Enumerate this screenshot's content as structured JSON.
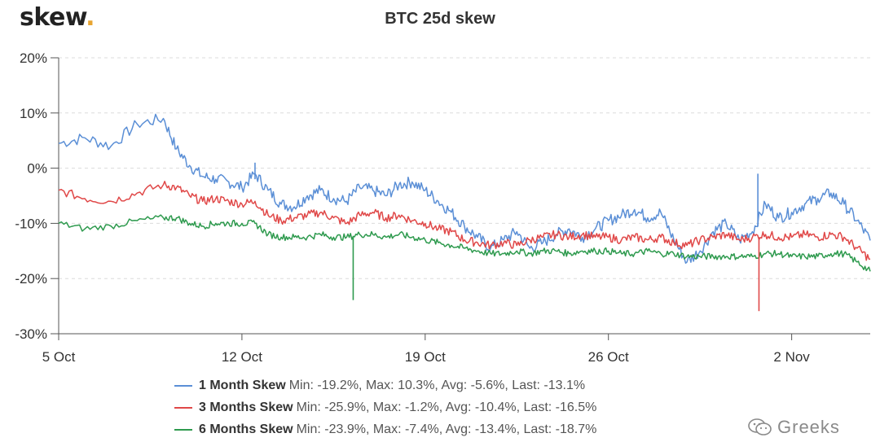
{
  "header": {
    "logo_text": "skew",
    "logo_dot": "."
  },
  "watermark": {
    "text": "Greeks",
    "icon": "wechat-icon"
  },
  "chart_data": {
    "type": "line",
    "title": "BTC 25d skew",
    "xlabel": "",
    "ylabel": "",
    "x_range": [
      "2020-10-05",
      "2020-11-05"
    ],
    "x_ticks": [
      "5 Oct",
      "12 Oct",
      "19 Oct",
      "26 Oct",
      "2 Nov"
    ],
    "y_ticks": [
      "20%",
      "10%",
      "0%",
      "-10%",
      "-20%",
      "-30%"
    ],
    "y_tick_values": [
      20,
      10,
      0,
      -10,
      -20,
      -30
    ],
    "ylim": [
      -30,
      20
    ],
    "grid": true,
    "legend_placement": "bottom",
    "series": [
      {
        "name": "1 Month Skew",
        "stats": "Min: -19.2%, Max: 10.3%, Avg: -5.6%, Last: -13.1%",
        "color": "#5b8fd6",
        "points": [
          [
            "2020-10-05",
            4.5
          ],
          [
            "2020-10-06",
            5.5
          ],
          [
            "2020-10-07",
            4.0
          ],
          [
            "2020-10-08",
            8.0
          ],
          [
            "2020-10-09",
            9.0
          ],
          [
            "2020-10-09T12",
            3.5
          ],
          [
            "2020-10-10",
            0.5
          ],
          [
            "2020-10-10T12",
            -1.5
          ],
          [
            "2020-10-11",
            -2.0
          ],
          [
            "2020-10-11T12",
            -2.5
          ],
          [
            "2020-10-12",
            -3.5
          ],
          [
            "2020-10-12T12",
            -1.0
          ],
          [
            "2020-10-13",
            -4.0
          ],
          [
            "2020-10-13T12",
            -6.5
          ],
          [
            "2020-10-14",
            -7.0
          ],
          [
            "2020-10-14T12",
            -5.0
          ],
          [
            "2020-10-15",
            -4.0
          ],
          [
            "2020-10-15T12",
            -5.5
          ],
          [
            "2020-10-16",
            -6.0
          ],
          [
            "2020-10-16T12",
            -3.5
          ],
          [
            "2020-10-17",
            -4.0
          ],
          [
            "2020-10-17T12",
            -5.0
          ],
          [
            "2020-10-18",
            -3.0
          ],
          [
            "2020-10-18T12",
            -2.5
          ],
          [
            "2020-10-19",
            -4.0
          ],
          [
            "2020-10-19T12",
            -6.0
          ],
          [
            "2020-10-20",
            -8.0
          ],
          [
            "2020-10-20T12",
            -10.5
          ],
          [
            "2020-10-21",
            -12.5
          ],
          [
            "2020-10-21T12",
            -14.5
          ],
          [
            "2020-10-22",
            -13.0
          ],
          [
            "2020-10-22T12",
            -11.5
          ],
          [
            "2020-10-23",
            -14.5
          ],
          [
            "2020-10-23T12",
            -13.5
          ],
          [
            "2020-10-24",
            -12.0
          ],
          [
            "2020-10-24T12",
            -11.0
          ],
          [
            "2020-10-25",
            -12.5
          ],
          [
            "2020-10-25T12",
            -11.0
          ],
          [
            "2020-10-26",
            -9.5
          ],
          [
            "2020-10-26T12",
            -8.5
          ],
          [
            "2020-10-27",
            -7.5
          ],
          [
            "2020-10-27T12",
            -9.0
          ],
          [
            "2020-10-28",
            -8.0
          ],
          [
            "2020-10-28T12",
            -13.0
          ],
          [
            "2020-10-29",
            -17.0
          ],
          [
            "2020-10-29T12",
            -15.0
          ],
          [
            "2020-10-30",
            -11.5
          ],
          [
            "2020-10-30T12",
            -10.0
          ],
          [
            "2020-10-31",
            -13.0
          ],
          [
            "2020-10-31T12",
            -11.5
          ],
          [
            "2020-11-01",
            -6.5
          ],
          [
            "2020-11-01T12",
            -9.0
          ],
          [
            "2020-11-02",
            -8.0
          ],
          [
            "2020-11-02T12",
            -6.5
          ],
          [
            "2020-11-03",
            -5.5
          ],
          [
            "2020-11-03T12",
            -4.5
          ],
          [
            "2020-11-04",
            -6.5
          ],
          [
            "2020-11-04T12",
            -9.5
          ],
          [
            "2020-11-05",
            -13.1
          ]
        ]
      },
      {
        "name": "3 Months Skew",
        "stats": "Min: -25.9%, Max: -1.2%, Avg: -10.4%, Last: -16.5%",
        "color": "#e04848",
        "points": [
          [
            "2020-10-05",
            -4.0
          ],
          [
            "2020-10-06",
            -5.5
          ],
          [
            "2020-10-07",
            -6.0
          ],
          [
            "2020-10-08",
            -4.5
          ],
          [
            "2020-10-09",
            -3.0
          ],
          [
            "2020-10-09T12",
            -3.5
          ],
          [
            "2020-10-10",
            -5.0
          ],
          [
            "2020-10-10T12",
            -6.0
          ],
          [
            "2020-10-11",
            -5.5
          ],
          [
            "2020-10-11T12",
            -6.0
          ],
          [
            "2020-10-12",
            -6.5
          ],
          [
            "2020-10-12T12",
            -6.0
          ],
          [
            "2020-10-13",
            -8.5
          ],
          [
            "2020-10-13T12",
            -9.5
          ],
          [
            "2020-10-14",
            -9.0
          ],
          [
            "2020-10-14T12",
            -8.5
          ],
          [
            "2020-10-15",
            -8.0
          ],
          [
            "2020-10-15T12",
            -9.0
          ],
          [
            "2020-10-16",
            -10.0
          ],
          [
            "2020-10-16T12",
            -8.5
          ],
          [
            "2020-10-17",
            -8.0
          ],
          [
            "2020-10-17T12",
            -9.0
          ],
          [
            "2020-10-18",
            -8.5
          ],
          [
            "2020-10-18T12",
            -9.5
          ],
          [
            "2020-10-19",
            -10.0
          ],
          [
            "2020-10-19T12",
            -11.0
          ],
          [
            "2020-10-20",
            -11.5
          ],
          [
            "2020-10-20T12",
            -13.0
          ],
          [
            "2020-10-21",
            -13.5
          ],
          [
            "2020-10-21T12",
            -14.0
          ],
          [
            "2020-10-22",
            -13.5
          ],
          [
            "2020-10-22T12",
            -14.0
          ],
          [
            "2020-10-23",
            -13.0
          ],
          [
            "2020-10-23T12",
            -12.5
          ],
          [
            "2020-10-24",
            -12.0
          ],
          [
            "2020-10-24T12",
            -12.5
          ],
          [
            "2020-10-25",
            -12.0
          ],
          [
            "2020-10-25T12",
            -12.5
          ],
          [
            "2020-10-26",
            -12.5
          ],
          [
            "2020-10-26T12",
            -13.0
          ],
          [
            "2020-10-27",
            -12.5
          ],
          [
            "2020-10-27T12",
            -13.0
          ],
          [
            "2020-10-28",
            -12.5
          ],
          [
            "2020-10-28T12",
            -13.5
          ],
          [
            "2020-10-29",
            -14.0
          ],
          [
            "2020-10-29T12",
            -13.0
          ],
          [
            "2020-10-30",
            -12.5
          ],
          [
            "2020-10-30T12",
            -12.0
          ],
          [
            "2020-10-31",
            -13.0
          ],
          [
            "2020-10-31T12",
            -12.5
          ],
          [
            "2020-11-01",
            -12.0
          ],
          [
            "2020-11-01T12",
            -12.5
          ],
          [
            "2020-11-02",
            -12.5
          ],
          [
            "2020-11-02T12",
            -12.0
          ],
          [
            "2020-11-03",
            -12.5
          ],
          [
            "2020-11-03T12",
            -12.0
          ],
          [
            "2020-11-04",
            -12.5
          ],
          [
            "2020-11-04T12",
            -14.5
          ],
          [
            "2020-11-05",
            -16.5
          ]
        ]
      },
      {
        "name": "6 Months Skew",
        "stats": "Min: -23.9%, Max: -7.4%, Avg: -13.4%, Last: -18.7%",
        "color": "#2e9a4e",
        "points": [
          [
            "2020-10-05",
            -10.0
          ],
          [
            "2020-10-06",
            -11.0
          ],
          [
            "2020-10-07",
            -10.5
          ],
          [
            "2020-10-08",
            -9.5
          ],
          [
            "2020-10-09",
            -9.0
          ],
          [
            "2020-10-09T12",
            -9.0
          ],
          [
            "2020-10-10",
            -10.0
          ],
          [
            "2020-10-10T12",
            -10.5
          ],
          [
            "2020-10-11",
            -10.0
          ],
          [
            "2020-10-11T12",
            -10.0
          ],
          [
            "2020-10-12",
            -10.0
          ],
          [
            "2020-10-12T12",
            -10.0
          ],
          [
            "2020-10-13",
            -12.0
          ],
          [
            "2020-10-13T12",
            -12.5
          ],
          [
            "2020-10-14",
            -12.5
          ],
          [
            "2020-10-14T12",
            -12.5
          ],
          [
            "2020-10-15",
            -12.0
          ],
          [
            "2020-10-15T12",
            -12.5
          ],
          [
            "2020-10-16",
            -12.5
          ],
          [
            "2020-10-16T12",
            -12.0
          ],
          [
            "2020-10-17",
            -12.0
          ],
          [
            "2020-10-17T12",
            -12.5
          ],
          [
            "2020-10-18",
            -12.0
          ],
          [
            "2020-10-18T12",
            -12.5
          ],
          [
            "2020-10-19",
            -13.0
          ],
          [
            "2020-10-19T12",
            -13.5
          ],
          [
            "2020-10-20",
            -14.0
          ],
          [
            "2020-10-20T12",
            -14.5
          ],
          [
            "2020-10-21",
            -15.0
          ],
          [
            "2020-10-21T12",
            -15.5
          ],
          [
            "2020-10-22",
            -15.5
          ],
          [
            "2020-10-22T12",
            -15.0
          ],
          [
            "2020-10-23",
            -15.5
          ],
          [
            "2020-10-23T12",
            -15.0
          ],
          [
            "2020-10-24",
            -15.0
          ],
          [
            "2020-10-24T12",
            -15.5
          ],
          [
            "2020-10-25",
            -15.0
          ],
          [
            "2020-10-25T12",
            -15.0
          ],
          [
            "2020-10-26",
            -15.0
          ],
          [
            "2020-10-26T12",
            -15.5
          ],
          [
            "2020-10-27",
            -15.5
          ],
          [
            "2020-10-27T12",
            -15.0
          ],
          [
            "2020-10-28",
            -15.5
          ],
          [
            "2020-10-28T12",
            -15.5
          ],
          [
            "2020-10-29",
            -16.0
          ],
          [
            "2020-10-29T12",
            -16.0
          ],
          [
            "2020-10-30",
            -16.0
          ],
          [
            "2020-10-30T12",
            -16.0
          ],
          [
            "2020-10-31",
            -16.0
          ],
          [
            "2020-10-31T12",
            -16.0
          ],
          [
            "2020-11-01",
            -15.5
          ],
          [
            "2020-11-01T12",
            -15.5
          ],
          [
            "2020-11-02",
            -16.0
          ],
          [
            "2020-11-02T12",
            -16.0
          ],
          [
            "2020-11-03",
            -16.0
          ],
          [
            "2020-11-03T12",
            -15.5
          ],
          [
            "2020-11-04",
            -15.5
          ],
          [
            "2020-11-04T12",
            -17.0
          ],
          [
            "2020-11-05",
            -18.7
          ]
        ]
      }
    ],
    "spikes": [
      {
        "series": "6 Months Skew",
        "x": "2020-10-16T06",
        "from": -12.5,
        "to": -23.9
      },
      {
        "series": "3 Months Skew",
        "x": "2020-10-31T18",
        "from": -12.5,
        "to": -25.9
      },
      {
        "series": "1 Month Skew",
        "x": "2020-10-31T17",
        "from": -10.5,
        "to": -1.0
      },
      {
        "series": "1 Month Skew",
        "x": "2020-10-12T12",
        "from": -2.0,
        "to": 1.0
      }
    ]
  }
}
